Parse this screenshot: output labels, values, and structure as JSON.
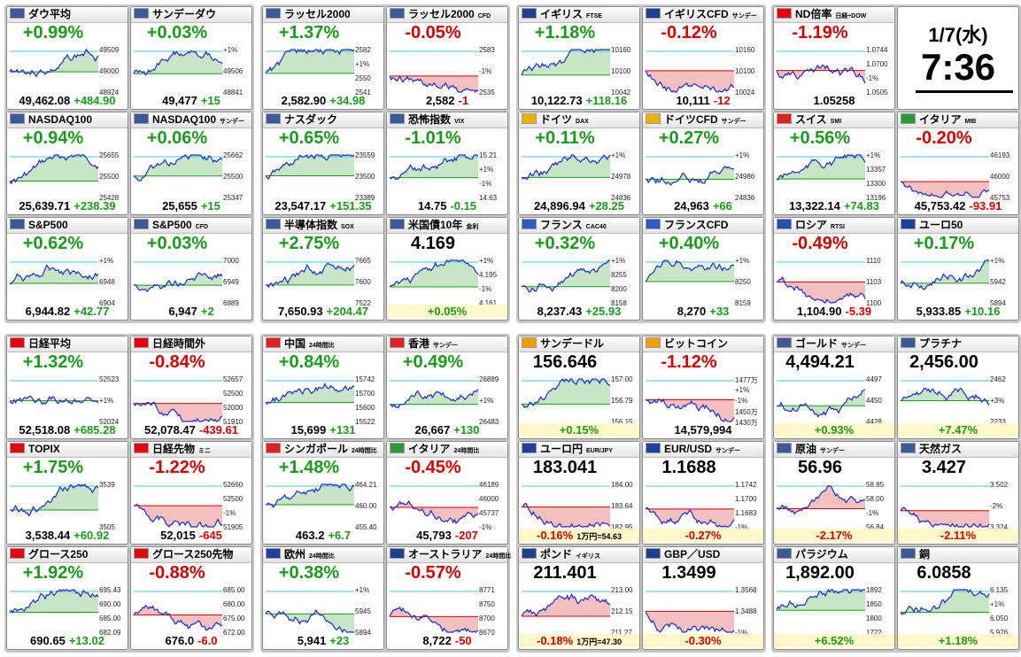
{
  "groups": [
    {
      "tiles": [
        {
          "name": "ダウ平均",
          "sub": "",
          "kind": "change",
          "main": "+0.99%",
          "foot": [
            "49,462.08",
            "+484.90"
          ],
          "labels": [
            "49509",
            "49000",
            "48924"
          ],
          "color": "#1a9b1a",
          "flag": "#3c5a9a"
        },
        {
          "name": "サンデーダウ",
          "sub": "",
          "kind": "change",
          "main": "+0.03%",
          "foot": [
            "49,477",
            "+15"
          ],
          "labels": [
            "+1%",
            "49506",
            "48841"
          ],
          "color": "#1a9b1a",
          "flag": "#3c5a9a"
        },
        {
          "name": "NASDAQ100",
          "sub": "",
          "kind": "change",
          "main": "+0.94%",
          "foot": [
            "25,639.71",
            "+238.39"
          ],
          "labels": [
            "25655",
            "25500",
            "25428"
          ],
          "color": "#1a9b1a",
          "flag": "#3c5a9a"
        },
        {
          "name": "NASDAQ100",
          "sub": "サンデー",
          "kind": "change",
          "main": "+0.06%",
          "foot": [
            "25,655",
            "+15"
          ],
          "labels": [
            "25662",
            "25500",
            "25347"
          ],
          "color": "#1a9b1a",
          "flag": "#3c5a9a"
        },
        {
          "name": "S&P500",
          "sub": "",
          "kind": "change",
          "main": "+0.62%",
          "foot": [
            "6,944.82",
            "+42.77"
          ],
          "labels": [
            "+1%",
            "6948",
            "6904"
          ],
          "color": "#1a9b1a",
          "flag": "#3c5a9a"
        },
        {
          "name": "S&P500",
          "sub": "CFD",
          "kind": "change",
          "main": "+0.03%",
          "foot": [
            "6,947",
            "+2"
          ],
          "labels": [
            "7000",
            "6949",
            "6889"
          ],
          "color": "#1a9b1a",
          "flag": "#3c5a9a"
        }
      ]
    },
    {
      "tiles": [
        {
          "name": "ラッセル2000",
          "sub": "",
          "kind": "change",
          "main": "+1.37%",
          "foot": [
            "2,582.90",
            "+34.98"
          ],
          "labels": [
            "2582",
            "+1%",
            "2550",
            "2541"
          ],
          "color": "#1a9b1a",
          "flag": "#3c5a9a"
        },
        {
          "name": "ラッセル2000",
          "sub": "CFD",
          "kind": "change",
          "main": "-0.05%",
          "foot": [
            "2,582",
            "-1"
          ],
          "labels": [
            "2583",
            "-1%",
            "2535"
          ],
          "color": "#d40000",
          "flag": "#3c5a9a"
        },
        {
          "name": "ナスダック",
          "sub": "",
          "kind": "change",
          "main": "+0.65%",
          "foot": [
            "23,547.17",
            "+151.35"
          ],
          "labels": [
            "23559",
            "23500",
            "23389"
          ],
          "color": "#1a9b1a",
          "flag": "#3c5a9a"
        },
        {
          "name": "恐怖指数",
          "sub": "VIX",
          "kind": "change",
          "main": "-1.01%",
          "foot": [
            "14.75",
            "-0.15"
          ],
          "labels": [
            "15.21",
            "+1%",
            "-1%",
            "14.63"
          ],
          "color": "#1a9b1a",
          "flag": "#3c5a9a"
        },
        {
          "name": "半導体指数",
          "sub": "SOX",
          "kind": "change",
          "main": "+2.75%",
          "foot": [
            "7,650.93",
            "+204.47"
          ],
          "labels": [
            "7665",
            "7600",
            "7522"
          ],
          "color": "#1a9b1a",
          "flag": "#3c5a9a"
        },
        {
          "name": "米国債10年",
          "sub": "金利",
          "kind": "price",
          "main": "4.169",
          "foot": [
            "+0.05%"
          ],
          "labels": [
            "+1%",
            "4.195",
            "-1%",
            "4.161"
          ],
          "color": "#1a9b1a",
          "flag": "#3c5a9a"
        }
      ]
    },
    {
      "tiles": [
        {
          "name": "イギリス",
          "sub": "FTSE",
          "kind": "change",
          "main": "+1.18%",
          "foot": [
            "10,122.73",
            "+118.16"
          ],
          "labels": [
            "10160",
            "10100",
            "10042"
          ],
          "color": "#1a9b1a",
          "flag": "#1f3f8f"
        },
        {
          "name": "イギリスCFD",
          "sub": "サンデー",
          "kind": "change",
          "main": "-0.12%",
          "foot": [
            "10,111",
            "-12"
          ],
          "labels": [
            "10160",
            "10100",
            "10024"
          ],
          "color": "#d40000",
          "flag": "#1f3f8f"
        },
        {
          "name": "ドイツ",
          "sub": "DAX",
          "kind": "change",
          "main": "+0.11%",
          "foot": [
            "24,896.94",
            "+28.25"
          ],
          "labels": [
            "+1%",
            "24978",
            "24836"
          ],
          "color": "#1a9b1a",
          "flag": "#f0b000"
        },
        {
          "name": "ドイツCFD",
          "sub": "サンデー",
          "kind": "change",
          "main": "+0.27%",
          "foot": [
            "24,963",
            "+66"
          ],
          "labels": [
            "+1%",
            "24986",
            "24836"
          ],
          "color": "#1a9b1a",
          "flag": "#f0b000"
        },
        {
          "name": "フランス",
          "sub": "CAC40",
          "kind": "change",
          "main": "+0.32%",
          "foot": [
            "8,237.43",
            "+25.93"
          ],
          "labels": [
            "+1%",
            "8255",
            "8200",
            "8158"
          ],
          "color": "#1a9b1a",
          "flag": "#2a5cc8"
        },
        {
          "name": "フランスCFD",
          "sub": "",
          "kind": "change",
          "main": "+0.40%",
          "foot": [
            "8,270",
            "+33"
          ],
          "labels": [
            "+1%",
            "8250",
            "8159"
          ],
          "color": "#1a9b1a",
          "flag": "#2a5cc8"
        }
      ]
    },
    {
      "tiles": [
        {
          "name": "ND倍率",
          "sub": "日経÷DOW",
          "kind": "change",
          "main": "-1.19%",
          "foot": [
            "1.05258"
          ],
          "labels": [
            "1.0744",
            "1.0700",
            "-1%",
            "1.0505"
          ],
          "color": "#d40000",
          "flag": "#e60012"
        },
        {
          "date": "1/7(水)",
          "time": "7:36"
        },
        {
          "name": "スイス",
          "sub": "SMI",
          "kind": "change",
          "main": "+0.56%",
          "foot": [
            "13,322.14",
            "+74.83"
          ],
          "labels": [
            "+1%",
            "13357",
            "13300",
            "13196"
          ],
          "color": "#1a9b1a",
          "flag": "#e02020"
        },
        {
          "name": "イタリア",
          "sub": "MIB",
          "kind": "change",
          "main": "-0.20%",
          "foot": [
            "45,753.42",
            "-93.91"
          ],
          "labels": [
            "46193",
            "46000",
            "45753"
          ],
          "color": "#d40000",
          "flag": "#2a9a3a"
        },
        {
          "name": "ロシア",
          "sub": "RTSI",
          "kind": "change",
          "main": "-0.49%",
          "foot": [
            "1,104.90",
            "-5.39"
          ],
          "labels": [
            "1110",
            "1103",
            "1100"
          ],
          "color": "#d40000",
          "flag": "#2050b0"
        },
        {
          "name": "ユーロ50",
          "sub": "",
          "kind": "change",
          "main": "+0.17%",
          "foot": [
            "5,933.85",
            "+10.16"
          ],
          "labels": [
            "+1%",
            "5942",
            "5894"
          ],
          "color": "#1a9b1a",
          "flag": "#2040a0"
        }
      ]
    },
    {
      "tiles": [
        {
          "name": "日経平均",
          "sub": "",
          "kind": "change",
          "main": "+1.32%",
          "foot": [
            "52,518.08",
            "+685.28"
          ],
          "labels": [
            "52523",
            "+1%",
            "52024"
          ],
          "color": "#1a9b1a",
          "flag": "#e60012"
        },
        {
          "name": "日経時間外",
          "sub": "",
          "kind": "change",
          "main": "-0.84%",
          "foot": [
            "52,078.47",
            "-439.61"
          ],
          "labels": [
            "52657",
            "52500",
            "52000",
            "51910"
          ],
          "color": "#d40000",
          "flag": "#e60012"
        },
        {
          "name": "TOPIX",
          "sub": "",
          "kind": "change",
          "main": "+1.75%",
          "foot": [
            "3,538.44",
            "+60.92"
          ],
          "labels": [
            "3539",
            "3505"
          ],
          "color": "#1a9b1a",
          "flag": "#e60012"
        },
        {
          "name": "日経先物",
          "sub": "ミニ",
          "kind": "change",
          "main": "-1.22%",
          "foot": [
            "52,015",
            "-645"
          ],
          "labels": [
            "52660",
            "52500",
            "-1%",
            "51905"
          ],
          "color": "#d40000",
          "flag": "#e60012"
        },
        {
          "name": "グロース250",
          "sub": "",
          "kind": "change",
          "main": "+1.92%",
          "foot": [
            "690.65",
            "+13.02"
          ],
          "labels": [
            "695.43",
            "690.00",
            "685.00",
            "682.09"
          ],
          "color": "#1a9b1a",
          "flag": "#e60012"
        },
        {
          "name": "グロース250先物",
          "sub": "",
          "kind": "change",
          "main": "-0.88%",
          "foot": [
            "676.0",
            "-6.0"
          ],
          "labels": [
            "685.00",
            "680.00",
            "675.00",
            "672.00"
          ],
          "color": "#d40000",
          "flag": "#e60012"
        }
      ]
    },
    {
      "tiles": [
        {
          "name": "中国",
          "sub": "24時間比",
          "kind": "change",
          "main": "+0.84%",
          "foot": [
            "15,699",
            "+131"
          ],
          "labels": [
            "15742",
            "15700",
            "15600",
            "15522"
          ],
          "color": "#1a9b1a",
          "flag": "#e02020"
        },
        {
          "name": "香港",
          "sub": "サンデー",
          "kind": "change",
          "main": "+0.49%",
          "foot": [
            "26,667",
            "+130"
          ],
          "labels": [
            "26889",
            "+1%",
            "26483"
          ],
          "color": "#1a9b1a",
          "flag": "#e02020"
        },
        {
          "name": "シンガポール",
          "sub": "24時間比",
          "kind": "change",
          "main": "+1.48%",
          "foot": [
            "463.2",
            "+6.7"
          ],
          "labels": [
            "464.21",
            "460.00",
            "455.40"
          ],
          "color": "#1a9b1a",
          "flag": "#e02020"
        },
        {
          "name": "イタリア",
          "sub": "24時間比",
          "kind": "change",
          "main": "-0.45%",
          "foot": [
            "45,793",
            "-207"
          ],
          "labels": [
            "46189",
            "46000",
            "45737",
            "-1%"
          ],
          "color": "#d40000",
          "flag": "#2a9a3a"
        },
        {
          "name": "欧州",
          "sub": "24時間比",
          "kind": "change",
          "main": "+0.38%",
          "foot": [
            "5,941",
            "+23"
          ],
          "labels": [
            "+1%",
            "5945",
            "5894"
          ],
          "color": "#1a9b1a",
          "flag": "#2040a0"
        },
        {
          "name": "オーストラリア",
          "sub": "24時間比",
          "kind": "change",
          "main": "-0.57%",
          "foot": [
            "8,722",
            "-50"
          ],
          "labels": [
            "8771",
            "8750",
            "8700",
            "8670"
          ],
          "color": "#d40000",
          "flag": "#1f3f8f"
        }
      ]
    },
    {
      "tiles": [
        {
          "name": "サンデードル",
          "sub": "",
          "kind": "price",
          "main": "156.646",
          "foot": [
            "+0.15%"
          ],
          "labels": [
            "157.00",
            "156.79",
            "156.15"
          ],
          "color": "#1a9b1a",
          "flag": "#f0a000"
        },
        {
          "name": "ビットコイン",
          "sub": "",
          "kind": "change",
          "main": "-1.12%",
          "foot": [
            "14,579,994"
          ],
          "labels": [
            "1477万",
            "+1%",
            "-1%",
            "1450万",
            "1430万"
          ],
          "color": "#d40000",
          "flag": "#f0a000"
        },
        {
          "name": "ユーロ円",
          "sub": "EUR/JPY",
          "kind": "price",
          "main": "183.041",
          "foot": [
            "-0.16%",
            "1万円=54.63"
          ],
          "labels": [
            "184.00",
            "183.64",
            "182.95"
          ],
          "color": "#d40000",
          "flag": "#2040a0"
        },
        {
          "name": "EUR/USD",
          "sub": "サンデー",
          "kind": "price",
          "main": "1.1688",
          "foot": [
            "-0.27%"
          ],
          "labels": [
            "1.1742",
            "1.1700",
            "1.1683",
            "-1%"
          ],
          "color": "#d40000",
          "flag": "#2040a0"
        },
        {
          "name": "ポンド",
          "sub": "イギリス",
          "kind": "price",
          "main": "211.401",
          "foot": [
            "-0.18%",
            "1万円=47.30"
          ],
          "labels": [
            "213.00",
            "212.15",
            "211.27"
          ],
          "color": "#d40000",
          "flag": "#1f3f8f"
        },
        {
          "name": "GBP／USD",
          "sub": "",
          "kind": "price",
          "main": "1.3499",
          "foot": [
            "-0.30%"
          ],
          "labels": [
            "1.3568",
            "1.3488",
            "-1%"
          ],
          "color": "#d40000",
          "flag": "#1f3f8f"
        }
      ]
    },
    {
      "tiles": [
        {
          "name": "ゴールド",
          "sub": "サンデー",
          "kind": "price",
          "main": "4,494.21",
          "foot": [
            "+0.93%"
          ],
          "labels": [
            "4497",
            "4450",
            "4428"
          ],
          "color": "#1a9b1a",
          "flag": "#3c5a9a"
        },
        {
          "name": "プラチナ",
          "sub": "",
          "kind": "price",
          "main": "2,456.00",
          "foot": [
            "+7.47%"
          ],
          "labels": [
            "2462",
            "+3%",
            "2233"
          ],
          "color": "#1a9b1a",
          "flag": "#3c5a9a"
        },
        {
          "name": "原油",
          "sub": "サンデー",
          "kind": "price",
          "main": "56.96",
          "foot": [
            "-2.17%"
          ],
          "labels": [
            "58.85",
            "58.00",
            "-1%",
            "56.84"
          ],
          "color": "#d40000",
          "flag": "#3c5a9a"
        },
        {
          "name": "天然ガス",
          "sub": "",
          "kind": "price",
          "main": "3.427",
          "foot": [
            "-2.11%"
          ],
          "labels": [
            "3.502",
            "-2%",
            "3.324"
          ],
          "color": "#d40000",
          "flag": "#3c5a9a"
        },
        {
          "name": "パラジウム",
          "sub": "",
          "kind": "price",
          "main": "1,892.00",
          "foot": [
            "+6.52%"
          ],
          "labels": [
            "1892",
            "1850",
            "1800",
            "1722"
          ],
          "color": "#1a9b1a",
          "flag": "#3c5a9a"
        },
        {
          "name": "銅",
          "sub": "",
          "kind": "price",
          "main": "6.0858",
          "foot": [
            "+1.18%"
          ],
          "labels": [
            "6.135",
            "+1%",
            "6.050",
            "5.976"
          ],
          "color": "#1a9b1a",
          "flag": "#3c5a9a"
        }
      ]
    }
  ]
}
